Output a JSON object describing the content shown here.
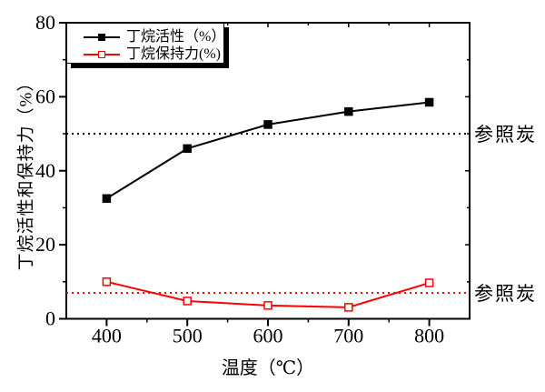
{
  "figure": {
    "y_axis_label": "丁烷活性和保持力（%）",
    "x_axis_label": "温度（℃）"
  },
  "legend": {
    "entries": [
      {
        "label": "丁烷活性（%）",
        "color": "#000000",
        "marker": "filled-square"
      },
      {
        "label": "丁烷保持力(%)",
        "color": "#ff0000",
        "marker": "open-square"
      }
    ]
  },
  "chart_data": {
    "type": "line",
    "title": "",
    "xlabel": "温度（℃）",
    "ylabel": "丁烷活性和保持力（%）",
    "x": [
      400,
      500,
      600,
      700,
      800
    ],
    "series": [
      {
        "name": "丁烷活性（%）",
        "color": "#000000",
        "marker": "filled-square",
        "values": [
          32.5,
          46,
          52.5,
          56,
          58.5
        ]
      },
      {
        "name": "丁烷保持力(%)",
        "color": "#ff0000",
        "marker": "open-square",
        "values": [
          10,
          4.8,
          3.6,
          3.1,
          9.7
        ]
      }
    ],
    "reference_lines": [
      {
        "label": "参照炭",
        "value": 50,
        "color": "#000000",
        "style": "dotted"
      },
      {
        "label": "参照炭",
        "value": 7,
        "color": "#ff0000",
        "style": "dotted"
      }
    ],
    "xlim": [
      350,
      850
    ],
    "ylim": [
      0,
      80
    ],
    "x_major_ticks": [
      400,
      500,
      600,
      700,
      800
    ],
    "x_minor_ticks": [
      450,
      550,
      650,
      750
    ],
    "y_major_ticks": [
      0,
      20,
      40,
      60,
      80
    ],
    "y_minor_ticks": [
      10,
      30,
      50,
      70
    ],
    "grid": false,
    "legend_position": "top-left"
  }
}
